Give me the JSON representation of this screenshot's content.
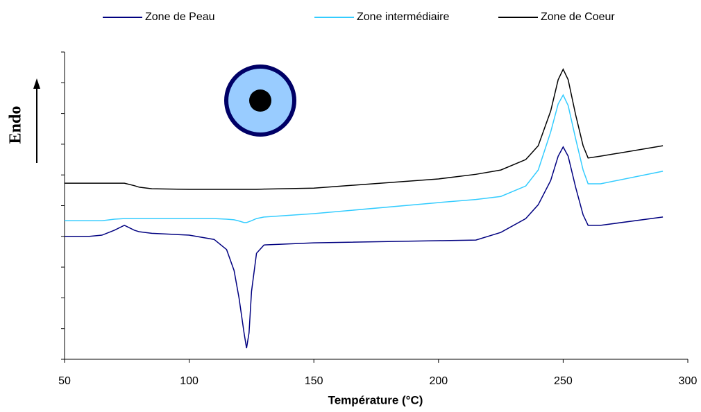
{
  "chart_data": {
    "type": "line",
    "x_label": "Température (°C)",
    "y_label": "Endo",
    "x": [
      50,
      60,
      65,
      70,
      74,
      78,
      80,
      85,
      100,
      110,
      115,
      118,
      120,
      122,
      123,
      124,
      125,
      127,
      130,
      150,
      200,
      215,
      225,
      235,
      240,
      245,
      248,
      250,
      252,
      255,
      258,
      260,
      265,
      290
    ],
    "series": [
      {
        "name": "Zone de Peau",
        "color": "#000080",
        "values": [
          4.0,
          4.0,
          4.04,
          4.2,
          4.36,
          4.2,
          4.15,
          4.1,
          4.04,
          3.9,
          3.57,
          2.89,
          1.99,
          0.86,
          0.36,
          0.86,
          2.21,
          3.45,
          3.72,
          3.79,
          3.86,
          3.88,
          4.13,
          4.58,
          5.03,
          5.82,
          6.61,
          6.91,
          6.61,
          5.6,
          4.7,
          4.36,
          4.36,
          4.63
        ]
      },
      {
        "name": "Zone intermédiaire",
        "color": "#33ccff",
        "values": [
          4.51,
          4.51,
          4.51,
          4.56,
          4.58,
          4.58,
          4.58,
          4.58,
          4.58,
          4.58,
          4.56,
          4.54,
          4.5,
          4.45,
          4.45,
          4.48,
          4.51,
          4.58,
          4.63,
          4.74,
          5.1,
          5.2,
          5.3,
          5.64,
          6.16,
          7.4,
          8.31,
          8.6,
          8.26,
          7.18,
          6.16,
          5.71,
          5.71,
          6.12
        ]
      },
      {
        "name": "Zone de Coeur",
        "color": "#000000",
        "values": [
          5.73,
          5.73,
          5.73,
          5.73,
          5.73,
          5.65,
          5.6,
          5.55,
          5.53,
          5.53,
          5.53,
          5.53,
          5.53,
          5.53,
          5.53,
          5.53,
          5.53,
          5.53,
          5.54,
          5.57,
          5.87,
          6.02,
          6.16,
          6.5,
          6.95,
          8.08,
          9.1,
          9.44,
          9.1,
          7.96,
          6.95,
          6.55,
          6.61,
          6.95
        ]
      }
    ],
    "xlim": [
      50,
      300
    ],
    "xticks": [
      50,
      100,
      150,
      200,
      250,
      300
    ],
    "ylim": [
      0,
      10
    ],
    "yticks": [
      0,
      1,
      2,
      3,
      4,
      5,
      6,
      7,
      8,
      9,
      10
    ],
    "legend": "top"
  }
}
